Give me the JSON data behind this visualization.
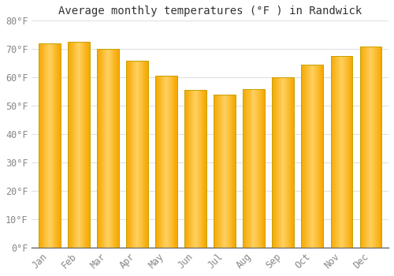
{
  "title": "Average monthly temperatures (°F ) in Randwick",
  "months": [
    "Jan",
    "Feb",
    "Mar",
    "Apr",
    "May",
    "Jun",
    "Jul",
    "Aug",
    "Sep",
    "Oct",
    "Nov",
    "Dec"
  ],
  "values": [
    72,
    72.5,
    70,
    66,
    60.5,
    55.5,
    54,
    56,
    60,
    64.5,
    67.5,
    71
  ],
  "bar_color_center": "#FFD060",
  "bar_color_edge": "#F5A800",
  "ylim": [
    0,
    80
  ],
  "yticks": [
    0,
    10,
    20,
    30,
    40,
    50,
    60,
    70,
    80
  ],
  "ytick_labels": [
    "0°F",
    "10°F",
    "20°F",
    "30°F",
    "40°F",
    "50°F",
    "60°F",
    "70°F",
    "80°F"
  ],
  "background_color": "#FFFFFF",
  "grid_color": "#E0E0E0",
  "title_fontsize": 10,
  "tick_fontsize": 8.5,
  "bar_outline_color": "#C8A000"
}
